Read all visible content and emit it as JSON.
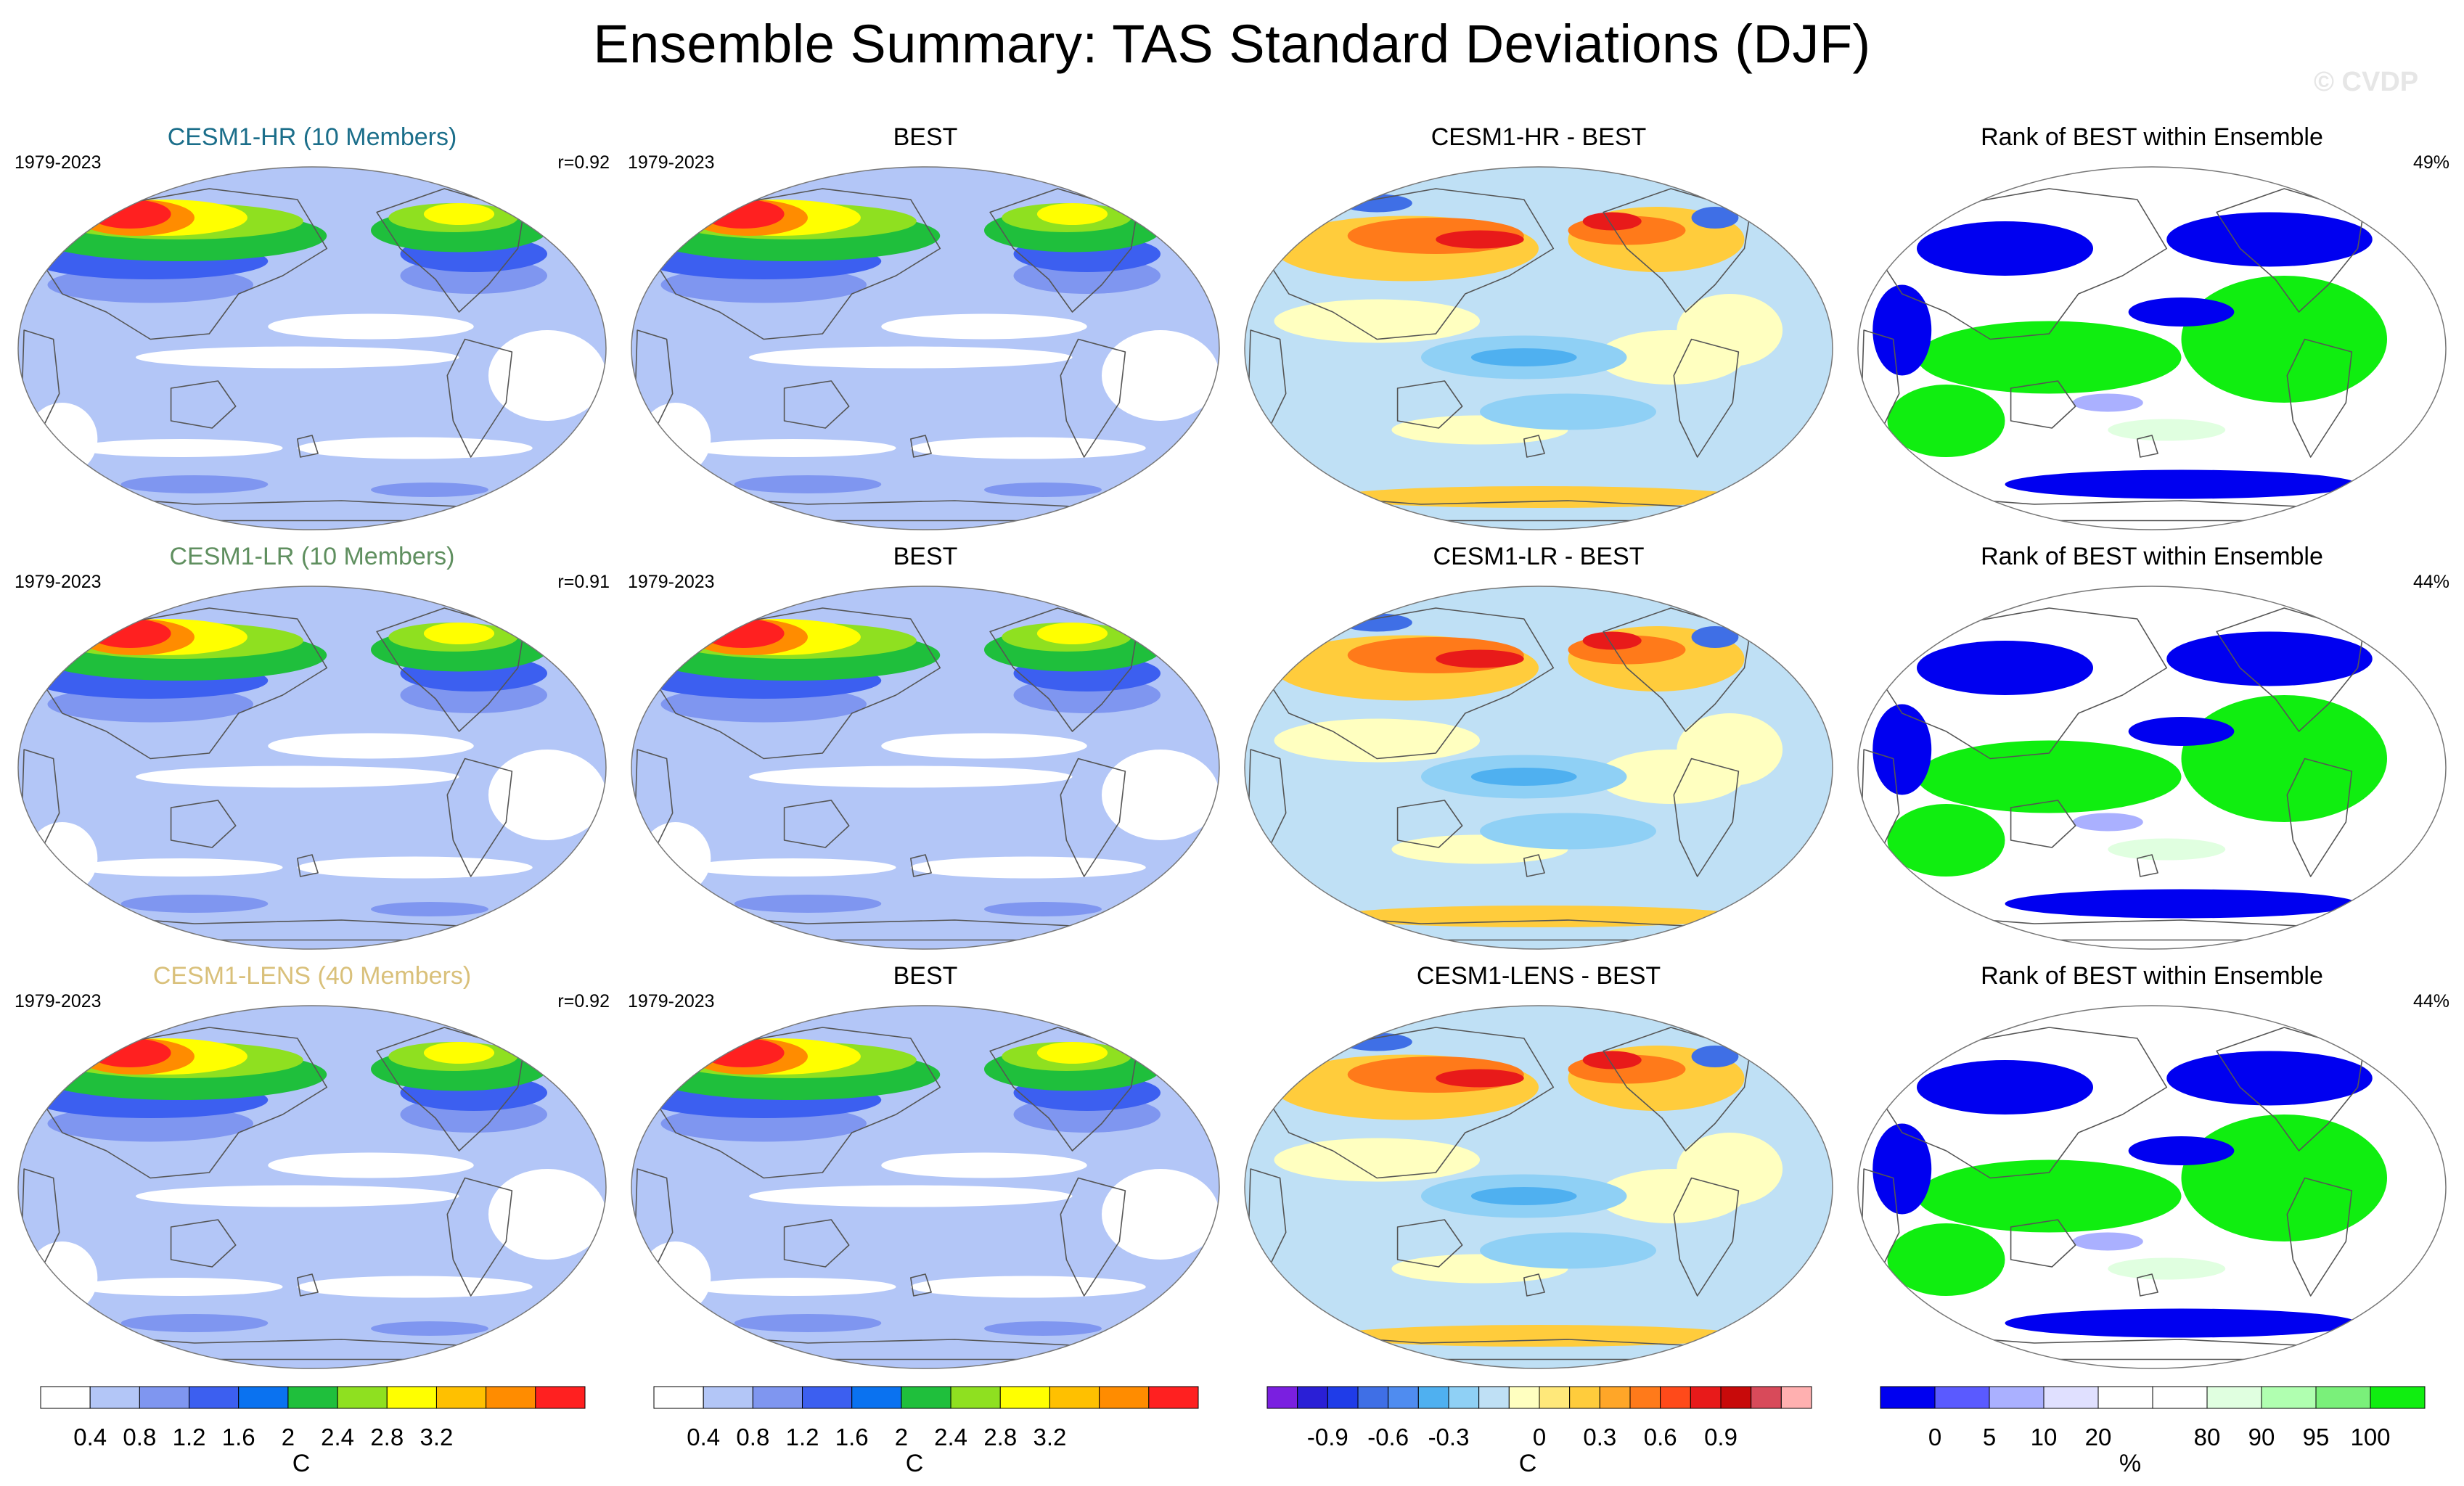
{
  "title": "Ensemble Summary: TAS Standard Deviations (DJF)",
  "copyright": "© CVDP",
  "colors": {
    "ocean_low": "#b3c6f7",
    "land_outline": "#555555",
    "high_red": "#ff2020",
    "title_hr": "#1b6e8a",
    "title_lr": "#5f8f5f",
    "title_lens": "#d9c07a"
  },
  "rows": [
    {
      "panels": [
        {
          "kind": "std",
          "title": "CESM1-HR (10 Members)",
          "title_color": "#1b6e8a",
          "left": "1979-2023",
          "right": "r=0.92"
        },
        {
          "kind": "std",
          "title": "BEST",
          "title_color": "#000000",
          "left": "1979-2023",
          "right": ""
        },
        {
          "kind": "diff",
          "title": "CESM1-HR - BEST",
          "title_color": "#000000",
          "left": "",
          "right": ""
        },
        {
          "kind": "rank",
          "title": "Rank of BEST within Ensemble",
          "title_color": "#000000",
          "left": "",
          "right": "49%"
        }
      ]
    },
    {
      "panels": [
        {
          "kind": "std",
          "title": "CESM1-LR (10 Members)",
          "title_color": "#5f8f5f",
          "left": "1979-2023",
          "right": "r=0.91"
        },
        {
          "kind": "std",
          "title": "BEST",
          "title_color": "#000000",
          "left": "1979-2023",
          "right": ""
        },
        {
          "kind": "diff",
          "title": "CESM1-LR - BEST",
          "title_color": "#000000",
          "left": "",
          "right": ""
        },
        {
          "kind": "rank",
          "title": "Rank of BEST within Ensemble",
          "title_color": "#000000",
          "left": "",
          "right": "44%"
        }
      ]
    },
    {
      "panels": [
        {
          "kind": "std",
          "title": "CESM1-LENS (40 Members)",
          "title_color": "#d9c07a",
          "left": "1979-2023",
          "right": "r=0.92"
        },
        {
          "kind": "std",
          "title": "BEST",
          "title_color": "#000000",
          "left": "1979-2023",
          "right": ""
        },
        {
          "kind": "diff",
          "title": "CESM1-LENS - BEST",
          "title_color": "#000000",
          "left": "",
          "right": ""
        },
        {
          "kind": "rank",
          "title": "Rank of BEST within Ensemble",
          "title_color": "#000000",
          "left": "",
          "right": "44%"
        }
      ]
    }
  ],
  "colorbars": [
    {
      "name": "std-colorbar-1",
      "unit": "C",
      "colors": [
        "#ffffff",
        "#b3c6f7",
        "#7f96f0",
        "#3c5ff0",
        "#0a72f0",
        "#1fbf3c",
        "#8fe020",
        "#ffff00",
        "#ffc000",
        "#ff8c00",
        "#ff2020"
      ],
      "labels": [
        "0.4",
        "0.8",
        "1.2",
        "1.6",
        "2",
        "2.4",
        "2.8",
        "3.2"
      ]
    },
    {
      "name": "std-colorbar-2",
      "unit": "C",
      "colors": [
        "#ffffff",
        "#b3c6f7",
        "#7f96f0",
        "#3c5ff0",
        "#0a72f0",
        "#1fbf3c",
        "#8fe020",
        "#ffff00",
        "#ffc000",
        "#ff8c00",
        "#ff2020"
      ],
      "labels": [
        "0.4",
        "0.8",
        "1.2",
        "1.6",
        "2",
        "2.4",
        "2.8",
        "3.2"
      ]
    },
    {
      "name": "diff-colorbar",
      "unit": "C",
      "colors": [
        "#7a1fe0",
        "#2a1fd6",
        "#1f3ce8",
        "#3f6fe6",
        "#4f8cf0",
        "#4fb0f0",
        "#8fd0f5",
        "#bfe0f5",
        "#ffffc0",
        "#ffe87a",
        "#ffcc3c",
        "#ffa628",
        "#ff7a1a",
        "#ff4a1a",
        "#e81a1a",
        "#c80a0a",
        "#d84a5a",
        "#ffb0b0"
      ],
      "labels": [
        "-0.9",
        "-0.6",
        "-0.3",
        "0",
        "0.3",
        "0.6",
        "0.9"
      ]
    },
    {
      "name": "rank-colorbar",
      "unit": "%",
      "colors": [
        "#0000f0",
        "#5a5aff",
        "#aab0ff",
        "#e0e0ff",
        "#ffffff",
        "#ffffff",
        "#e0ffe0",
        "#b0ffb0",
        "#7af07a",
        "#10ee10"
      ],
      "labels": [
        "0",
        "5",
        "10",
        "20",
        "80",
        "90",
        "95",
        "100"
      ]
    }
  ]
}
